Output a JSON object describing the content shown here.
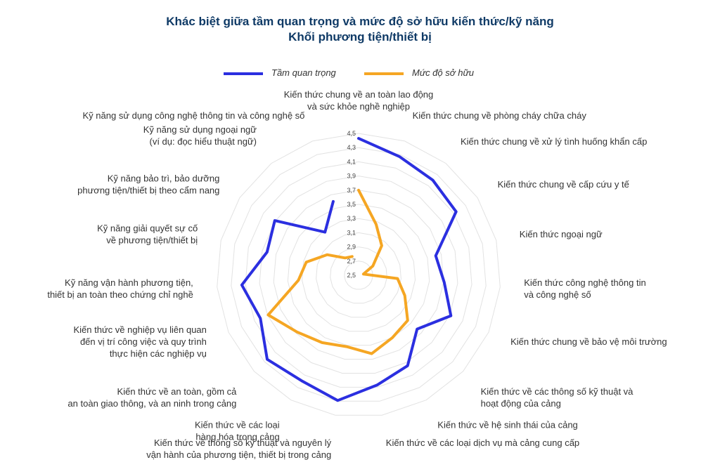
{
  "chart_data": {
    "type": "radar",
    "title": "Khác biệt giữa tầm quan trọng và mức độ sở hữu kiến thức/kỹ năng",
    "subtitle": "Khối phương tiện/thiết bị",
    "rlim": [
      2.5,
      4.5
    ],
    "ticks": [
      "2,5",
      "2,7",
      "2,9",
      "3,1",
      "3,3",
      "3,5",
      "3,7",
      "3,9",
      "4,1",
      "4,3",
      "4,5"
    ],
    "legend_position": "top",
    "categories": [
      "Kiến thức chung về an toàn lao động\nvà sức khỏe nghề nghiệp",
      "Kiến thức chung về phòng cháy chữa cháy",
      "Kiến thức chung về xử lý tình huống khẩn cấp",
      "Kiến thức chung về cấp cứu y tế",
      "Kiến thức ngoại ngữ",
      "Kiến thức công nghệ thông tin\nvà công nghệ số",
      "Kiến thức chung về bảo vệ môi trường",
      "Kiến thức về các thông số kỹ thuật và\nhoạt động của cảng",
      "Kiến thức về hệ sinh thái của cảng",
      "Kiến thức về các loại dịch vụ mà cảng cung cấp",
      "Kiến thức về thông số kỹ thuật và nguyên lý\nvận hành của phương tiện, thiết bị trong cảng",
      "Kiến thức về các loại\nhàng hóa trong cảng",
      "Kiến thức về an toàn, gồm cả\nan toàn giao thông, và an ninh trong cảng",
      "Kiến thức về nghiệp vụ liên quan\nđến vị trí công việc và quy trình\nthực hiện các nghiệp vụ",
      "Kỹ năng vận hành phương tiện,\nthiết bị an toàn theo chứng chỉ nghề",
      "Kỹ năng giải quyết sự cố\nvề phương tiện/thiết bị",
      "Kỹ năng bảo trì, bảo dưỡng\nphương tiện/thiết bị theo cẩm nang",
      "Kỹ năng sử dụng ngoại ngữ\n(ví dụ: đọc hiểu thuật ngữ)",
      "Kỹ năng sử dụng công nghệ thông tin và công nghệ số"
    ],
    "series": [
      {
        "name": "Tầm quan trọng",
        "color": "#2b2fe0",
        "values": [
          4.43,
          4.27,
          4.2,
          4.14,
          3.62,
          3.71,
          3.92,
          3.62,
          3.95,
          4.07,
          4.29,
          4.19,
          4.25,
          4.01,
          4.15,
          3.83,
          3.91,
          3.27,
          3.6
        ]
      },
      {
        "name": "Mức độ sở hữu",
        "color": "#f5a623",
        "values": [
          3.7,
          3.26,
          3.03,
          2.74,
          2.57,
          3.05,
          3.21,
          3.44,
          3.5,
          3.62,
          3.52,
          3.58,
          3.68,
          3.89,
          3.35,
          3.26,
          3.03,
          2.81,
          2.78
        ]
      }
    ]
  }
}
